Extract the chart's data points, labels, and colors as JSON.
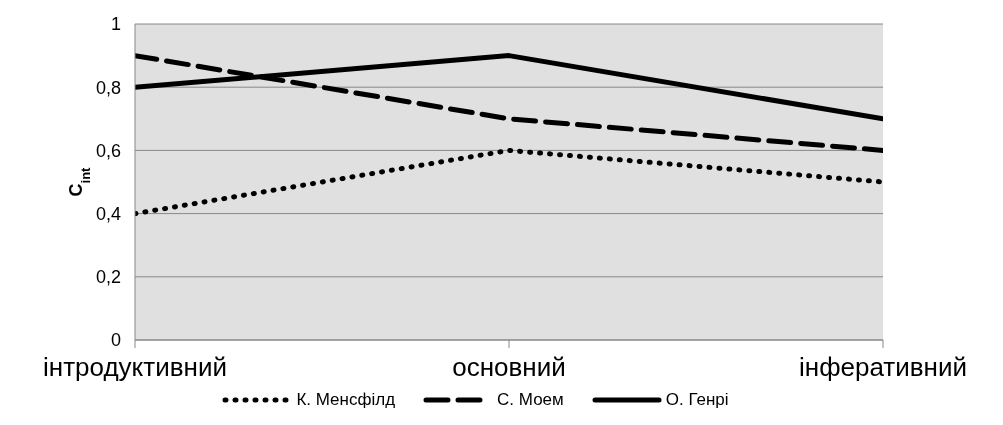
{
  "chart_data": {
    "type": "line",
    "ylabel": "C$_{int}$",
    "categories": [
      "інтродуктивний",
      "основний",
      "інферативний"
    ],
    "series": [
      {
        "name": "К. Менсфілд",
        "color": "#000000",
        "line_style": "dotted",
        "values": [
          0.4,
          0.6,
          0.5
        ]
      },
      {
        "name": "С. Моем",
        "color": "#000000",
        "line_style": "dashed",
        "values": [
          0.9,
          0.7,
          0.6
        ]
      },
      {
        "name": "О. Генрі",
        "color": "#000000",
        "line_style": "solid",
        "values": [
          0.8,
          0.9,
          0.7
        ]
      }
    ],
    "ylim": [
      0,
      1
    ],
    "yticks": [
      0,
      {
        "value": 0.2,
        "label": "0,2"
      },
      {
        "value": 0.4,
        "label": "0,4"
      },
      {
        "value": 0.6,
        "label": "0,6"
      },
      {
        "value": 0.8,
        "label": "0,8"
      },
      1
    ],
    "grid": "y",
    "legend": "bottom",
    "marker": "none"
  }
}
